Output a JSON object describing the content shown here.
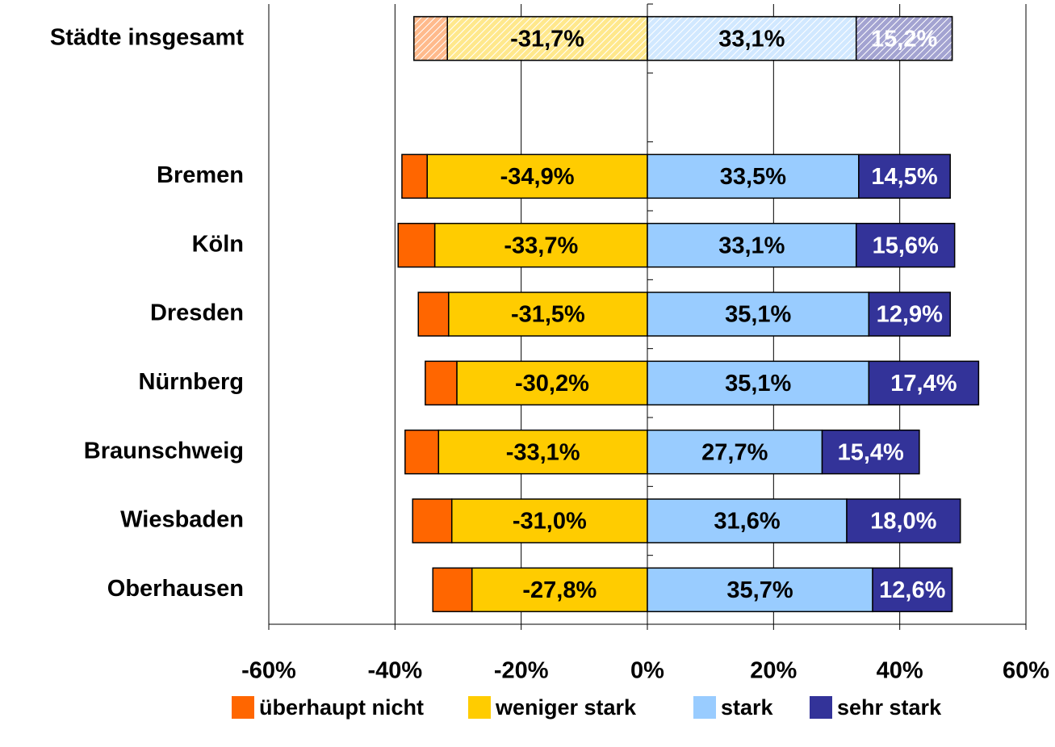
{
  "chart_data": {
    "type": "diverging_stacked_bar",
    "categories": [
      "Städte insgesamt",
      null,
      "Bremen",
      "Köln",
      "Dresden",
      "Nürnberg",
      "Braunschweig",
      "Wiesbaden",
      "Oberhausen"
    ],
    "series": [
      {
        "name": "überhaupt nicht",
        "color": "#ff6600",
        "values": [
          -5.3,
          null,
          -4.0,
          -5.8,
          -4.8,
          -5.0,
          -5.3,
          -6.2,
          -6.2
        ]
      },
      {
        "name": "weniger stark",
        "color": "#ffcc00",
        "values": [
          -31.7,
          null,
          -34.9,
          -33.7,
          -31.5,
          -30.2,
          -33.1,
          -31.0,
          -27.8
        ],
        "value_labels": [
          "-31,7%",
          null,
          "-34,9%",
          "-33,7%",
          "-31,5%",
          "-30,2%",
          "-33,1%",
          "-31,0%",
          "-27,8%"
        ]
      },
      {
        "name": "stark",
        "color": "#99ccff",
        "values": [
          33.1,
          null,
          33.5,
          33.1,
          35.1,
          35.1,
          27.7,
          31.6,
          35.7
        ],
        "value_labels": [
          "33,1%",
          null,
          "33,5%",
          "33,1%",
          "35,1%",
          "35,1%",
          "27,7%",
          "31,6%",
          "35,7%"
        ]
      },
      {
        "name": "sehr stark",
        "color": "#333399",
        "label_color": "#ffffff",
        "values": [
          15.2,
          null,
          14.5,
          15.6,
          12.9,
          17.4,
          15.4,
          18.0,
          12.6
        ],
        "value_labels": [
          "15,2%",
          null,
          "14,5%",
          "15,6%",
          "12,9%",
          "17,4%",
          "15,4%",
          "18,0%",
          "12,6%"
        ]
      }
    ],
    "xlim": [
      -60,
      60
    ],
    "xticks": [
      {
        "value": -60,
        "label": "-60%"
      },
      {
        "value": -40,
        "label": "-40%"
      },
      {
        "value": -20,
        "label": "-20%"
      },
      {
        "value": 0,
        "label": "0%"
      },
      {
        "value": 20,
        "label": "20%"
      },
      {
        "value": 40,
        "label": "40%"
      },
      {
        "value": 60,
        "label": "60%"
      }
    ],
    "grid": true
  }
}
